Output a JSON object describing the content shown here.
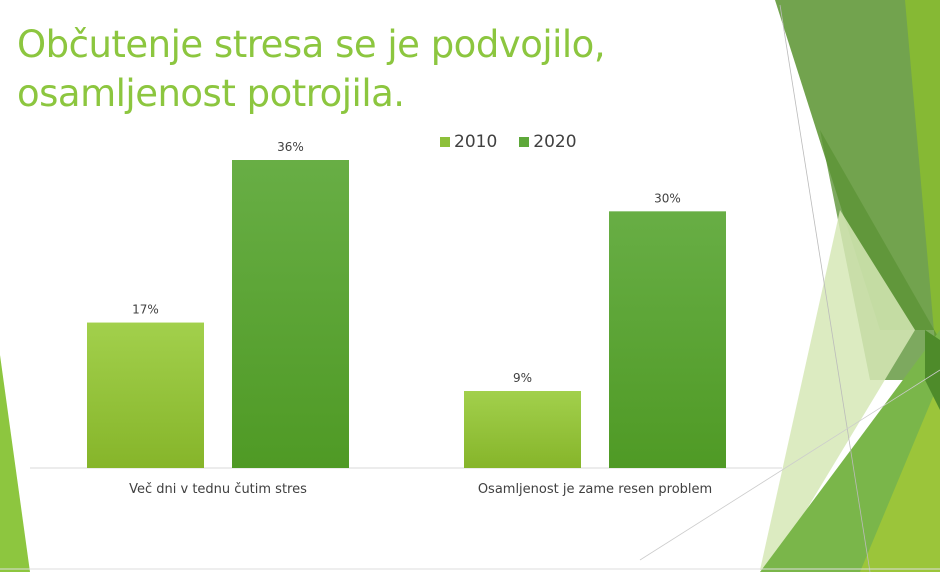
{
  "title_line1": "Občutenje stresa se je podvojilo,",
  "title_line2": "osamljenost potrojila.",
  "colors": {
    "title": "#8cc63f",
    "series_2010": "#8dc03a",
    "series_2020": "#5ea83a"
  },
  "chart_data": {
    "type": "bar",
    "categories": [
      "Več dni v tednu čutim stres",
      "Osamljenost je zame resen problem"
    ],
    "series": [
      {
        "name": "2010",
        "values": [
          17,
          9
        ],
        "labels": [
          "17%",
          "9%"
        ]
      },
      {
        "name": "2020",
        "values": [
          36,
          30
        ],
        "labels": [
          "36%",
          "30%"
        ]
      }
    ],
    "legend": "top-right",
    "grid": false,
    "ylim": [
      0,
      36
    ]
  }
}
